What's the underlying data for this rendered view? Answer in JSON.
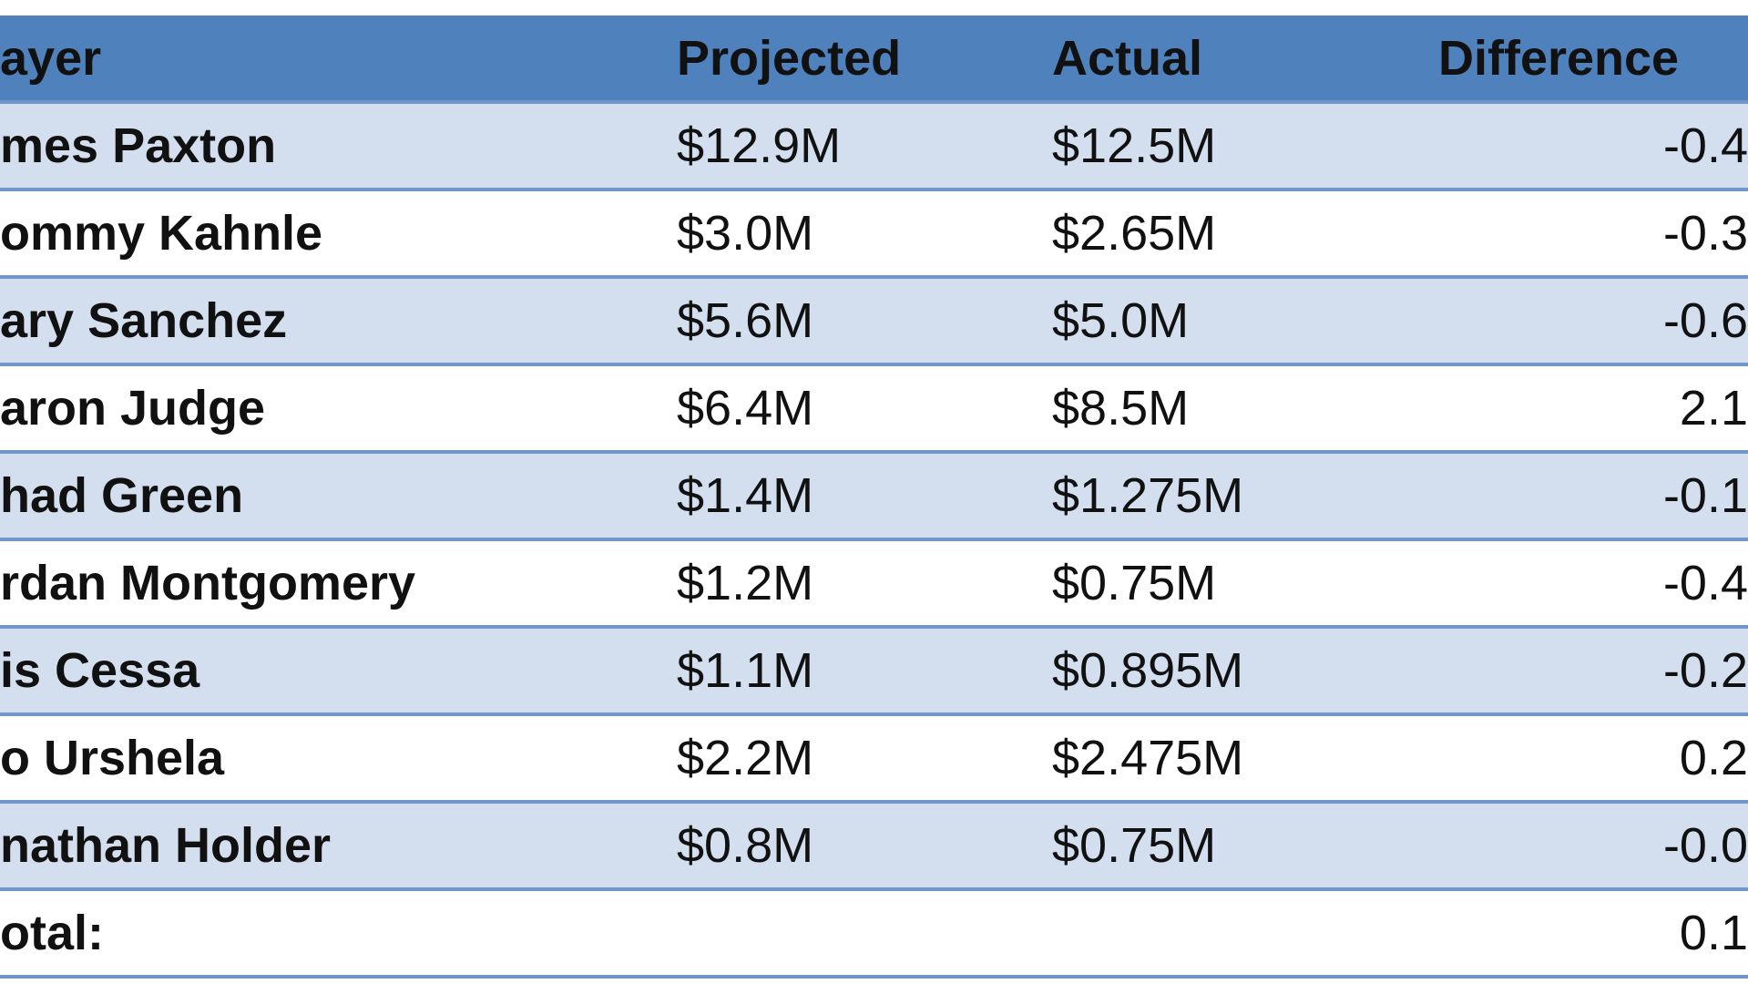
{
  "table": {
    "header": [
      "ayer",
      "Projected",
      "Actual",
      "Difference"
    ],
    "rows": [
      [
        "mes Paxton",
        "$12.9M",
        "$12.5M",
        "-0.4"
      ],
      [
        "ommy Kahnle",
        "$3.0M",
        "$2.65M",
        "-0.3"
      ],
      [
        "ary Sanchez",
        "$5.6M",
        "$5.0M",
        "-0.6"
      ],
      [
        "aron Judge",
        "$6.4M",
        "$8.5M",
        "2.1"
      ],
      [
        "had Green",
        "$1.4M",
        "$1.275M",
        "-0.1"
      ],
      [
        "rdan Montgomery",
        "$1.2M",
        "$0.75M",
        "-0.4"
      ],
      [
        "is Cessa",
        "$1.1M",
        "$0.895M",
        "-0.2"
      ],
      [
        "o Urshela",
        "$2.2M",
        "$2.475M",
        "0.2"
      ],
      [
        "nathan Holder",
        "$0.8M",
        "$0.75M",
        "-0.0"
      ]
    ],
    "total": [
      "otal:",
      "0.1"
    ]
  }
}
